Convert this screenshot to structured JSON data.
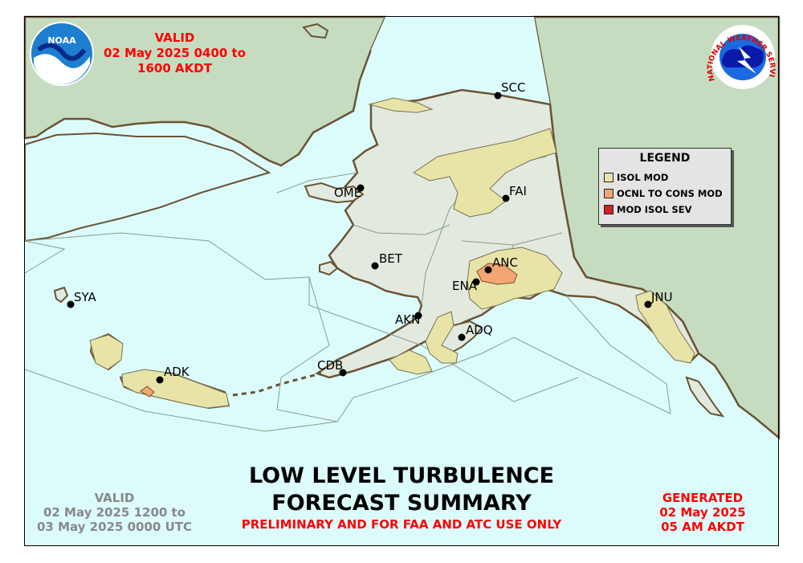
{
  "valid_local": "VALID\n02 May 2025 0400 to\n1600 AKDT",
  "valid_utc": "VALID\n02 May 2025 1200 to\n03 May 2025 0000 UTC",
  "title": "LOW LEVEL TURBULENCE\nFORECAST SUMMARY",
  "subtitle": "PRELIMINARY AND FOR FAA AND ATC USE ONLY",
  "generated": "GENERATED\n02 May 2025\n05 AM AKDT",
  "noaa_logo_text": "NOAA",
  "nws_logo_text": "NATIONAL WEATHER SERVICE",
  "legend": {
    "title": "LEGEND",
    "items": [
      {
        "label": "ISOL MOD",
        "color": "#e8e4a8"
      },
      {
        "label": "OCNL TO CONS MOD",
        "color": "#f4a672"
      },
      {
        "label": "MOD ISOL SEV",
        "color": "#d62028"
      }
    ]
  },
  "stations": [
    "SCC",
    "OME",
    "FAI",
    "BET",
    "ANC",
    "ENA",
    "SYA",
    "AKN",
    "ADQ",
    "JNU",
    "ADK",
    "CDB"
  ],
  "colors": {
    "ocean": "#dcfcfc",
    "land_canada_russia": "#c6dcc0",
    "land_alaska": "#e2e9df",
    "coast": "#6a5434",
    "red_text": "#ff0000",
    "grey_text": "#888888"
  }
}
